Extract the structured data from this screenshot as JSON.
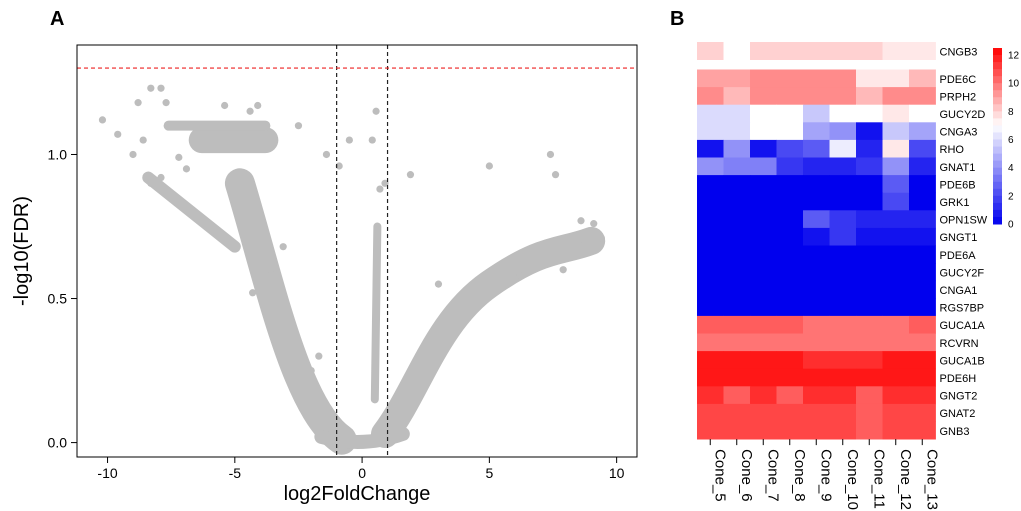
{
  "panels": {
    "a": {
      "letter": "A"
    },
    "b": {
      "letter": "B"
    }
  },
  "chart_data": [
    {
      "type": "scatter",
      "title": "",
      "xlabel": "log2FoldChange",
      "ylabel": "-log10(FDR)",
      "xlim": [
        -11.2,
        10.8
      ],
      "ylim": [
        -0.05,
        1.38
      ],
      "xticks": [
        -10,
        -5,
        0,
        5,
        10
      ],
      "xtick_labels": [
        "-10",
        "-5",
        "0",
        "5",
        "10"
      ],
      "yticks": [
        0.0,
        0.5,
        1.0
      ],
      "ytick_labels": [
        "0.0",
        "0.5",
        "1.0"
      ],
      "grid": false,
      "point_color": "#bdbdbd",
      "fc_thresholds": [
        -1,
        1
      ],
      "fdr_threshold": 1.3,
      "threshold_color": "#ee2222",
      "vline_color": "#222222",
      "note": "points are an approximate representation of the dense cloud",
      "points": [
        [
          -10.2,
          1.12
        ],
        [
          -9.6,
          1.07
        ],
        [
          -8.8,
          1.18
        ],
        [
          -8.3,
          1.23
        ],
        [
          -7.9,
          1.23
        ],
        [
          -7.7,
          1.18
        ],
        [
          -8.6,
          1.05
        ],
        [
          -9.0,
          1.0
        ],
        [
          -4.1,
          1.17
        ],
        [
          -4.4,
          1.15
        ],
        [
          -5.4,
          1.17
        ],
        [
          -2.5,
          1.1
        ],
        [
          -1.4,
          1.0
        ],
        [
          -0.9,
          0.96
        ],
        [
          -0.5,
          1.05
        ],
        [
          0.4,
          1.05
        ],
        [
          0.55,
          1.15
        ],
        [
          0.7,
          0.88
        ],
        [
          0.9,
          0.9
        ],
        [
          1.9,
          0.93
        ],
        [
          5.0,
          0.96
        ],
        [
          7.4,
          1.0
        ],
        [
          7.6,
          0.93
        ],
        [
          9.4,
          0.71
        ],
        [
          8.6,
          0.77
        ],
        [
          -7.9,
          0.92
        ],
        [
          -8.3,
          0.9
        ],
        [
          -6.9,
          0.95
        ],
        [
          -7.2,
          0.99
        ],
        [
          -3.1,
          0.68
        ],
        [
          -3.6,
          0.6
        ],
        [
          -2.0,
          0.25
        ],
        [
          -1.7,
          0.3
        ],
        [
          3.0,
          0.55
        ],
        [
          4.6,
          0.55
        ],
        [
          6.2,
          0.58
        ],
        [
          7.9,
          0.6
        ],
        [
          8.5,
          0.7
        ],
        [
          9.1,
          0.76
        ],
        [
          -4.3,
          0.52
        ]
      ]
    },
    {
      "type": "heatmap",
      "title": "",
      "columns": [
        "Cone_5",
        "Cone_6",
        "Cone_7",
        "Cone_8",
        "Cone_9",
        "Cone_10",
        "Cone_11",
        "Cone_12",
        "Cone_13"
      ],
      "rows": [
        "CNGB3",
        "PDE6C",
        "PRPH2",
        "GUCY2D",
        "CNGA3",
        "RHO",
        "GNAT1",
        "PDE6B",
        "GRK1",
        "OPN1SW",
        "GNGT1",
        "PDE6A",
        "GUCY2F",
        "CNGA1",
        "RGS7BP",
        "GUCA1A",
        "RCVRN",
        "GUCA1B",
        "PDE6H",
        "GNGT2",
        "GNAT2",
        "GNB3"
      ],
      "row_gap_after": "CNGB3",
      "values": [
        [
          8,
          7,
          8,
          8,
          8,
          8,
          8,
          7.5,
          7.5
        ],
        [
          9,
          9,
          9.5,
          9.5,
          9.5,
          9.5,
          7.5,
          7.5,
          8.5
        ],
        [
          9.5,
          8.5,
          9.5,
          9.5,
          9.5,
          9.5,
          8.5,
          9.5,
          9.5
        ],
        [
          6,
          6,
          7,
          7,
          5.5,
          7,
          7,
          7.5,
          7
        ],
        [
          6,
          6,
          7,
          7,
          4.5,
          4,
          0.5,
          5.5,
          4.5
        ],
        [
          0.5,
          4,
          0.5,
          2,
          2.5,
          6.5,
          1,
          7.5,
          2
        ],
        [
          4,
          3.5,
          3.5,
          1.5,
          1,
          1,
          1.5,
          4,
          1
        ],
        [
          0,
          0,
          0,
          0,
          0,
          0,
          0,
          2.5,
          0
        ],
        [
          0,
          0,
          0,
          0,
          0,
          0,
          0,
          2,
          0
        ],
        [
          0,
          0,
          0,
          0,
          2.5,
          1.5,
          1,
          1,
          1
        ],
        [
          0,
          0,
          0,
          0,
          0.5,
          1.5,
          0.5,
          0.5,
          0.5
        ],
        [
          0,
          0,
          0,
          0,
          0,
          0,
          0,
          0,
          0
        ],
        [
          0,
          0,
          0,
          0,
          0,
          0,
          0,
          0,
          0
        ],
        [
          0,
          0,
          0,
          0,
          0,
          0,
          0,
          0,
          0
        ],
        [
          0,
          0,
          0,
          0,
          0,
          0,
          0,
          0,
          0
        ],
        [
          10.5,
          10.5,
          10.5,
          10.5,
          10,
          10,
          10,
          10,
          10.5
        ],
        [
          10,
          10,
          10,
          10,
          10,
          10,
          10,
          10,
          10
        ],
        [
          12,
          12,
          12,
          12,
          11.5,
          11.5,
          11.5,
          12,
          12
        ],
        [
          12,
          12,
          12,
          12,
          12,
          12,
          12,
          12,
          12
        ],
        [
          11.5,
          10.5,
          11.5,
          10.5,
          11.5,
          11.5,
          10.5,
          11.5,
          11.5
        ],
        [
          11,
          11,
          11,
          11,
          11,
          11,
          10.5,
          11,
          11
        ],
        [
          11,
          11,
          11,
          11,
          11,
          11,
          10.5,
          11,
          11
        ]
      ],
      "scale": {
        "min": 0,
        "max": 12.5,
        "low_color": "#0000ee",
        "high_color": "#ff0000",
        "mid_value": 7
      },
      "colorbar_ticks": [
        0,
        2,
        4,
        6,
        8,
        10,
        12
      ],
      "colorbar_tick_labels": [
        "0",
        "2",
        "4",
        "6",
        "8",
        "10",
        "12"
      ]
    }
  ]
}
